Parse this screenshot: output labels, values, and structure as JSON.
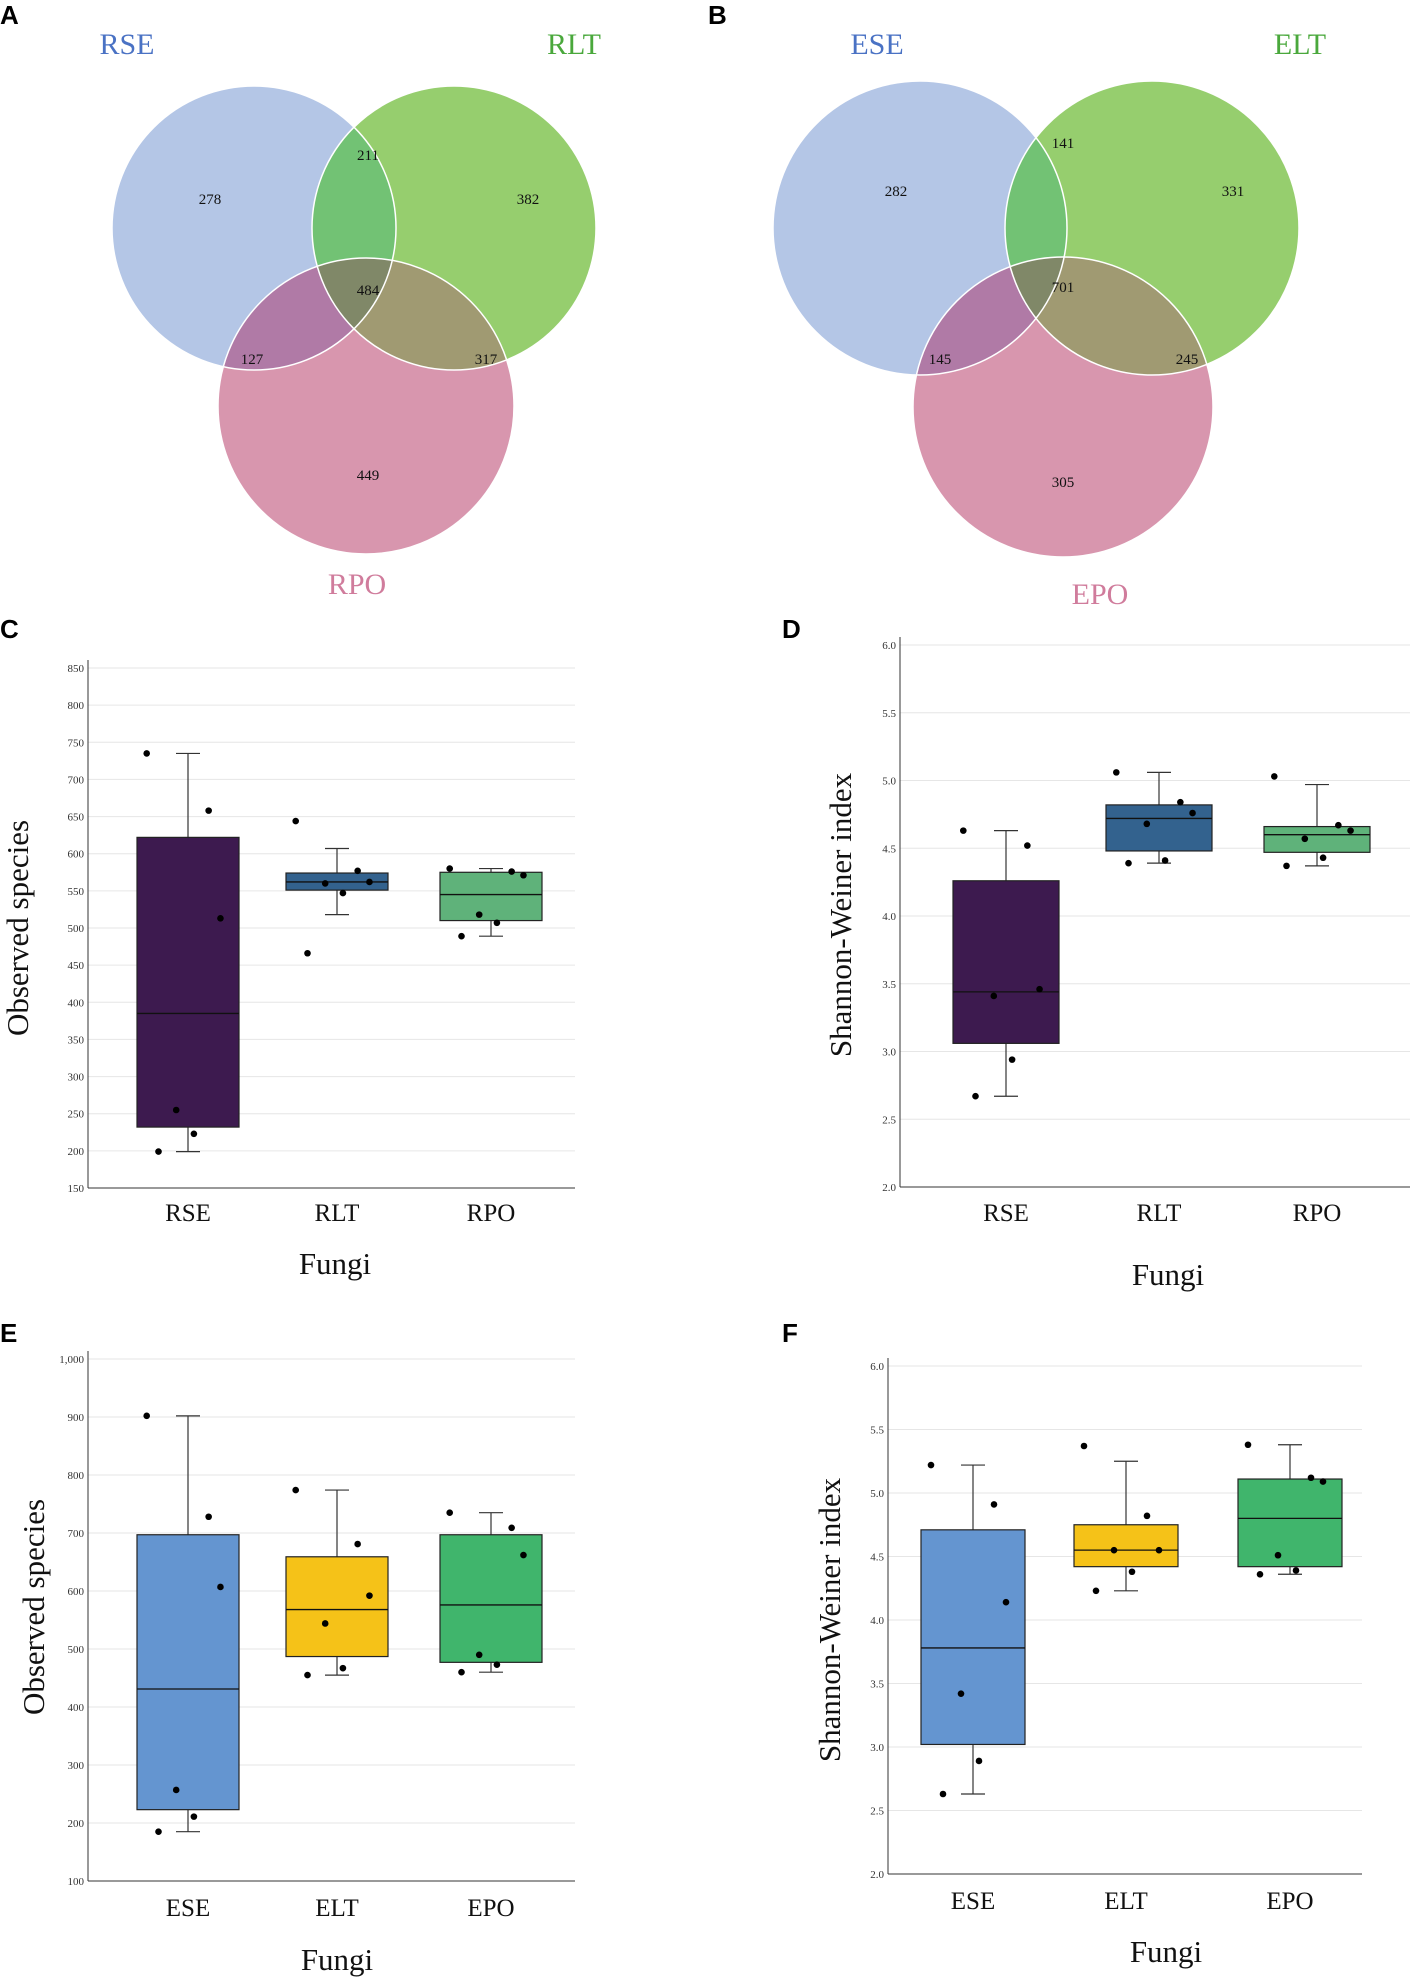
{
  "figure": {
    "panels": [
      "A",
      "B",
      "C",
      "D",
      "E",
      "F"
    ]
  },
  "chart_data": [
    {
      "panel": "A",
      "type": "venn",
      "sets": [
        {
          "label": "RSE",
          "color": "#b4c6e6"
        },
        {
          "label": "RLT",
          "color": "#96ce6e"
        },
        {
          "label": "RPO",
          "color": "#d896ae"
        }
      ],
      "label_colors": [
        "#4a72c4",
        "#4aa83c",
        "#d07c9c"
      ],
      "regions": {
        "only_1": "278",
        "only_2": "382",
        "only_3": "449",
        "1_2": "211",
        "1_3": "127",
        "2_3": "317",
        "all": "484"
      }
    },
    {
      "panel": "B",
      "type": "venn",
      "sets": [
        {
          "label": "ESE",
          "color": "#b4c6e6"
        },
        {
          "label": "ELT",
          "color": "#96ce6e"
        },
        {
          "label": "EPO",
          "color": "#d896ae"
        }
      ],
      "label_colors": [
        "#4a72c4",
        "#4aa83c",
        "#d07c9c"
      ],
      "regions": {
        "only_1": "282",
        "only_2": "331",
        "only_3": "305",
        "1_2": "141",
        "1_3": "145",
        "2_3": "245",
        "all": "701"
      }
    },
    {
      "panel": "C",
      "type": "box",
      "xlabel": "Fungi",
      "ylabel": "Observed species",
      "ylim": [
        150,
        850
      ],
      "yticks": [
        "150",
        "200",
        "250",
        "300",
        "350",
        "400",
        "450",
        "500",
        "550",
        "600",
        "650",
        "700",
        "750",
        "800",
        "850"
      ],
      "groups": [
        {
          "name": "RSE",
          "color": "#3d1a4f",
          "min": 199,
          "q1": 232,
          "median": 385,
          "q3": 622,
          "max": 735,
          "points": [
            735,
            658,
            513,
            255,
            223,
            199
          ]
        },
        {
          "name": "RLT",
          "color": "#33628e",
          "min": 518,
          "q1": 551,
          "median": 562,
          "q3": 574,
          "max": 607,
          "points": [
            644,
            577,
            562,
            560,
            547,
            466
          ]
        },
        {
          "name": "RPO",
          "color": "#5fb27a",
          "min": 489,
          "q1": 510,
          "median": 545,
          "q3": 575,
          "max": 580,
          "points": [
            580,
            576,
            571,
            518,
            507,
            489
          ]
        }
      ]
    },
    {
      "panel": "D",
      "type": "box",
      "xlabel": "Fungi",
      "ylabel": "Shannon-Weiner index",
      "ylim": [
        2.0,
        6.0
      ],
      "yticks": [
        "2.0",
        "2.5",
        "3.0",
        "3.5",
        "4.0",
        "4.5",
        "5.0",
        "5.5",
        "6.0"
      ],
      "groups": [
        {
          "name": "RSE",
          "color": "#3d1a4f",
          "min": 2.67,
          "q1": 3.06,
          "median": 3.44,
          "q3": 4.26,
          "max": 4.63,
          "points": [
            4.63,
            4.52,
            3.46,
            3.41,
            2.94,
            2.67
          ]
        },
        {
          "name": "RLT",
          "color": "#33628e",
          "min": 4.39,
          "q1": 4.48,
          "median": 4.72,
          "q3": 4.82,
          "max": 5.06,
          "points": [
            5.06,
            4.84,
            4.76,
            4.68,
            4.41,
            4.39
          ]
        },
        {
          "name": "RPO",
          "color": "#5fb27a",
          "min": 4.37,
          "q1": 4.47,
          "median": 4.6,
          "q3": 4.66,
          "max": 4.97,
          "points": [
            5.03,
            4.67,
            4.63,
            4.57,
            4.43,
            4.37
          ]
        }
      ]
    },
    {
      "panel": "E",
      "type": "box",
      "xlabel": "Fungi",
      "ylabel": "Observed species",
      "ylim": [
        100,
        1000
      ],
      "yticks": [
        "100",
        "200",
        "300",
        "400",
        "500",
        "600",
        "700",
        "800",
        "900",
        "1,000"
      ],
      "groups": [
        {
          "name": "ESE",
          "color": "#6495d0",
          "min": 185,
          "q1": 223,
          "median": 431,
          "q3": 697,
          "max": 902,
          "points": [
            902,
            728,
            607,
            257,
            211,
            185
          ]
        },
        {
          "name": "ELT",
          "color": "#f5c218",
          "min": 455,
          "q1": 487,
          "median": 568,
          "q3": 659,
          "max": 774,
          "points": [
            774,
            681,
            592,
            544,
            467,
            455
          ]
        },
        {
          "name": "EPO",
          "color": "#40b56c",
          "min": 460,
          "q1": 477,
          "median": 576,
          "q3": 697,
          "max": 735,
          "points": [
            735,
            709,
            662,
            490,
            473,
            460
          ]
        }
      ]
    },
    {
      "panel": "F",
      "type": "box",
      "xlabel": "Fungi",
      "ylabel": "Shannon-Weiner index",
      "ylim": [
        2.0,
        6.0
      ],
      "yticks": [
        "2.0",
        "2.5",
        "3.0",
        "3.5",
        "4.0",
        "4.5",
        "5.0",
        "5.5",
        "6.0"
      ],
      "groups": [
        {
          "name": "ESE",
          "color": "#6495d0",
          "min": 2.63,
          "q1": 3.02,
          "median": 3.78,
          "q3": 4.71,
          "max": 5.22,
          "points": [
            5.22,
            4.91,
            4.14,
            3.42,
            2.89,
            2.63
          ]
        },
        {
          "name": "ELT",
          "color": "#f5c218",
          "min": 4.23,
          "q1": 4.42,
          "median": 4.55,
          "q3": 4.75,
          "max": 5.25,
          "points": [
            5.37,
            4.82,
            4.55,
            4.55,
            4.38,
            4.23
          ]
        },
        {
          "name": "EPO",
          "color": "#40b56c",
          "min": 4.36,
          "q1": 4.42,
          "median": 4.8,
          "q3": 5.11,
          "max": 5.38,
          "points": [
            5.38,
            5.12,
            5.09,
            4.51,
            4.39,
            4.36
          ]
        }
      ]
    }
  ]
}
